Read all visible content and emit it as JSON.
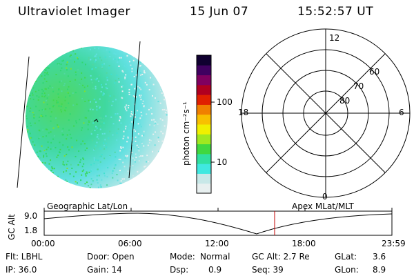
{
  "header": {
    "title": "Ultraviolet Imager",
    "date": "15 Jun 07",
    "time": "15:52:57 UT"
  },
  "colorbar": {
    "unit_label": "photon cm⁻²s⁻¹",
    "ticks": [
      "100",
      "10"
    ],
    "colors": [
      "#e8f0f0",
      "#c8e8e8",
      "#40e8e0",
      "#30e0a0",
      "#40d840",
      "#a0e820",
      "#f0f000",
      "#f8c000",
      "#f08000",
      "#e02000",
      "#b00020",
      "#800060",
      "#400060",
      "#100030"
    ]
  },
  "polar": {
    "labels": [
      "12",
      "6",
      "18",
      "0"
    ],
    "ring_labels": [
      "60",
      "70",
      "80"
    ]
  },
  "timeline": {
    "left_label": "Geographic Lat/Lon",
    "right_label": "Apex MLat/MLT",
    "axis_label": "GC Alt",
    "y_top": "9.0",
    "y_bottom": "1.8",
    "ticks": [
      "00:00",
      "06:00",
      "12:00",
      "18:00",
      "23:59"
    ]
  },
  "footer": {
    "col1": [
      "Flt: LBHL",
      "IP: 36.0"
    ],
    "col2": [
      "Door: Open",
      "Gain: 14"
    ],
    "col3a": [
      "Mode:",
      "Dsp:"
    ],
    "col3b": [
      "Normal",
      "0.9"
    ],
    "col4": [
      "GC Alt: 2.7 Re",
      "Seq: 39"
    ],
    "col5a": [
      "GLat:",
      "GLon:"
    ],
    "col5b": [
      "3.6",
      "8.9"
    ]
  },
  "colors": {
    "accent_red": "#c00000"
  }
}
